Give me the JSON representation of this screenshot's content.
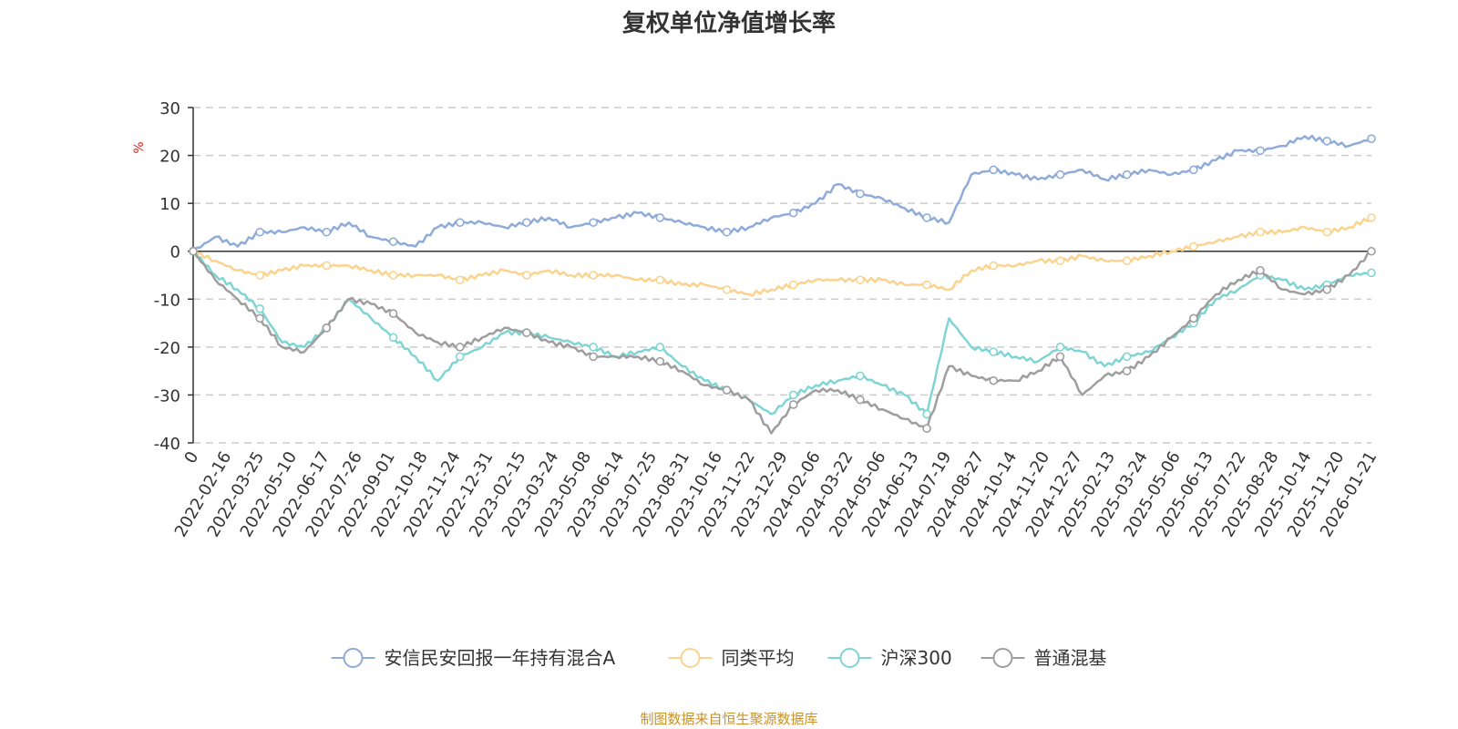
{
  "chart_data": {
    "type": "line",
    "title": "复权单位净值增长率",
    "ylabel": "%",
    "ylim": [
      -40,
      30
    ],
    "yticks": [
      30,
      20,
      10,
      0,
      -10,
      -20,
      -30,
      -40
    ],
    "x_start_label": "0",
    "x_labels": [
      "2022-02-16",
      "2022-03-25",
      "2022-05-10",
      "2022-06-17",
      "2022-07-26",
      "2022-09-01",
      "2022-10-18",
      "2022-11-24",
      "2022-12-31",
      "2023-02-15",
      "2023-03-24",
      "2023-05-08",
      "2023-06-14",
      "2023-07-25",
      "2023-08-31",
      "2023-10-16",
      "2023-11-22",
      "2023-12-29",
      "2024-02-06",
      "2024-03-22",
      "2024-05-06",
      "2024-06-13",
      "2024-07-19",
      "2024-08-27",
      "2024-10-14",
      "2024-11-20",
      "2024-12-27",
      "2025-02-13",
      "2025-03-24",
      "2025-05-06",
      "2025-06-13",
      "2025-07-22",
      "2025-08-28",
      "2025-10-14",
      "2025-11-20",
      "2026-01-21"
    ],
    "grid": true,
    "legend_position": "bottom",
    "series": [
      {
        "name": "安信民安回报一年持有混合A",
        "color": "#8fabd9",
        "values": [
          0,
          3,
          1,
          4,
          4,
          5,
          4,
          6,
          3,
          2,
          1,
          5,
          6,
          6,
          5,
          6,
          7,
          5,
          6,
          7,
          8,
          7,
          6,
          5,
          4,
          5,
          7,
          8,
          10,
          14,
          12,
          11,
          9,
          7,
          6,
          16,
          17,
          16,
          15,
          16,
          17,
          15,
          16,
          17,
          16,
          17,
          19,
          21,
          21,
          22,
          24,
          23,
          22,
          23.5
        ]
      },
      {
        "name": "同类平均",
        "color": "#fbd38d",
        "values": [
          0,
          -2,
          -4,
          -5,
          -4,
          -3,
          -3,
          -3,
          -4,
          -5,
          -5,
          -5,
          -6,
          -5,
          -4,
          -5,
          -4,
          -5,
          -5,
          -5,
          -6,
          -6,
          -7,
          -7,
          -8,
          -9,
          -8,
          -7,
          -6,
          -6,
          -6,
          -6,
          -7,
          -7,
          -8,
          -4,
          -3,
          -3,
          -2,
          -2,
          -1,
          -2,
          -2,
          -1,
          0,
          1,
          2,
          3,
          4,
          4,
          5,
          4,
          5,
          7
        ]
      },
      {
        "name": "沪深300",
        "color": "#7fd5d4",
        "values": [
          0,
          -5,
          -8,
          -12,
          -19,
          -20,
          -16,
          -10,
          -14,
          -18,
          -22,
          -27,
          -22,
          -20,
          -17,
          -17,
          -18,
          -19,
          -20,
          -22,
          -21,
          -20,
          -24,
          -27,
          -29,
          -31,
          -34,
          -30,
          -28,
          -27,
          -26,
          -28,
          -30,
          -34,
          -14,
          -20,
          -21,
          -22,
          -23,
          -20,
          -21,
          -24,
          -22,
          -21,
          -18,
          -15,
          -10,
          -8,
          -5,
          -6,
          -8,
          -7,
          -5,
          -4.5
        ]
      },
      {
        "name": "普通混基",
        "color": "#9e9e9e",
        "values": [
          0,
          -6,
          -10,
          -14,
          -20,
          -21,
          -16,
          -10,
          -11,
          -13,
          -17,
          -19,
          -20,
          -18,
          -16,
          -17,
          -19,
          -20,
          -22,
          -22,
          -22,
          -23,
          -25,
          -28,
          -29,
          -31,
          -38,
          -32,
          -29,
          -29,
          -31,
          -33,
          -35,
          -37,
          -24,
          -26,
          -27,
          -27,
          -25,
          -22,
          -30,
          -26,
          -25,
          -22,
          -18,
          -14,
          -9,
          -6,
          -4,
          -8,
          -9,
          -8,
          -5,
          0
        ]
      }
    ]
  },
  "source_note": "制图数据来自恒生聚源数据库"
}
